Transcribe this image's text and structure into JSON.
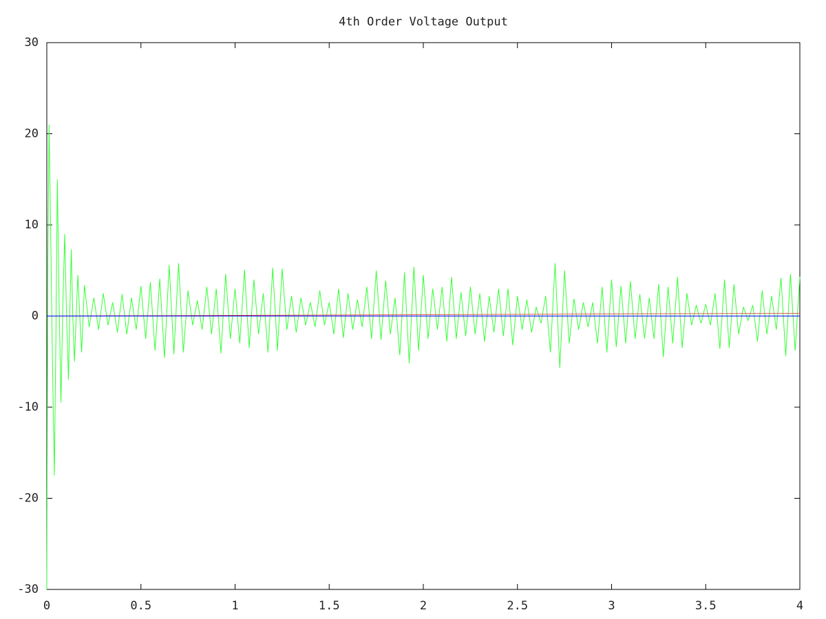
{
  "chart_data": {
    "type": "line",
    "title": "4th Order Voltage Output",
    "xlim": [
      0,
      4
    ],
    "xticks": [
      0,
      0.5,
      1,
      1.5,
      2,
      2.5,
      3,
      3.5,
      4
    ],
    "ylim": [
      -30,
      30
    ],
    "yticks": [
      -30,
      -20,
      -10,
      0,
      10,
      20,
      30
    ],
    "grid": false,
    "series": [
      {
        "color": "#33ff33",
        "x": [
          0,
          0.005,
          0.012,
          0.02,
          0.03,
          0.04,
          0.048,
          0.056,
          0.065,
          0.075,
          0.085,
          0.095,
          0.105,
          0.115,
          0.123,
          0.13,
          0.138,
          0.147,
          0.157,
          0.165,
          0.175,
          0.185,
          0.2,
          0.225,
          0.25,
          0.275,
          0.3,
          0.325,
          0.35,
          0.375,
          0.4,
          0.425,
          0.45,
          0.475,
          0.5,
          0.525,
          0.55,
          0.575,
          0.6,
          0.625,
          0.65,
          0.675,
          0.7,
          0.725,
          0.75,
          0.775,
          0.8,
          0.825,
          0.85,
          0.875,
          0.9,
          0.925,
          0.95,
          0.975,
          1.0,
          1.025,
          1.05,
          1.075,
          1.1,
          1.125,
          1.15,
          1.175,
          1.2,
          1.225,
          1.25,
          1.275,
          1.3,
          1.325,
          1.35,
          1.375,
          1.4,
          1.425,
          1.45,
          1.475,
          1.5,
          1.525,
          1.55,
          1.575,
          1.6,
          1.625,
          1.65,
          1.675,
          1.7,
          1.725,
          1.75,
          1.775,
          1.8,
          1.825,
          1.85,
          1.875,
          1.9,
          1.925,
          1.95,
          1.975,
          2.0,
          2.025,
          2.05,
          2.075,
          2.1,
          2.125,
          2.15,
          2.175,
          2.2,
          2.225,
          2.25,
          2.275,
          2.3,
          2.325,
          2.35,
          2.375,
          2.4,
          2.425,
          2.45,
          2.475,
          2.5,
          2.525,
          2.55,
          2.575,
          2.6,
          2.625,
          2.65,
          2.675,
          2.7,
          2.725,
          2.75,
          2.775,
          2.8,
          2.825,
          2.85,
          2.875,
          2.9,
          2.925,
          2.95,
          2.975,
          3.0,
          3.025,
          3.05,
          3.075,
          3.1,
          3.125,
          3.15,
          3.175,
          3.2,
          3.225,
          3.25,
          3.275,
          3.3,
          3.325,
          3.35,
          3.375,
          3.4,
          3.425,
          3.45,
          3.475,
          3.5,
          3.525,
          3.55,
          3.575,
          3.6,
          3.625,
          3.65,
          3.675,
          3.7,
          3.725,
          3.75,
          3.775,
          3.8,
          3.825,
          3.85,
          3.875,
          3.9,
          3.925,
          3.95,
          3.975,
          4.0
        ],
        "values": [
          -30,
          5,
          21,
          10,
          -5,
          -17.5,
          -3,
          15,
          2,
          -9.5,
          1,
          9,
          0,
          -7,
          1,
          7.3,
          0,
          -5,
          0.5,
          4.5,
          0,
          -4,
          3.4,
          -1.2,
          2.0,
          -1.5,
          2.5,
          -1,
          1.5,
          -1.8,
          2.4,
          -2,
          2,
          -1.5,
          3.3,
          -2.5,
          3.7,
          -3.8,
          4.1,
          -4.6,
          5.6,
          -4.2,
          5.8,
          -4,
          2.8,
          -1,
          1.7,
          -1.5,
          3.2,
          -2,
          3,
          -4.1,
          4.6,
          -2.5,
          3,
          -3,
          5.1,
          -3.5,
          4,
          -2,
          2.5,
          -4,
          5.3,
          -3.8,
          5.2,
          -1.5,
          2.2,
          -1.8,
          2,
          -1,
          1.5,
          -1.2,
          2.8,
          -1,
          1.5,
          -2,
          3,
          -2.4,
          2.5,
          -1.5,
          1.8,
          -1.2,
          3.2,
          -2.5,
          5,
          -2.6,
          3.9,
          -2,
          2,
          -4.3,
          4.8,
          -5.2,
          5.4,
          -3.8,
          4.5,
          -2.5,
          3,
          -1.5,
          3.2,
          -2.8,
          4.3,
          -2.5,
          2.6,
          -2.2,
          3.2,
          -2,
          2.5,
          -2.8,
          2.2,
          -1.8,
          3,
          -2.2,
          3,
          -3.2,
          2.2,
          -1.5,
          1.8,
          -1.8,
          1,
          -0.8,
          2.2,
          -4,
          5.8,
          -5.7,
          5,
          -3,
          1.9,
          -1.5,
          1.5,
          -1.2,
          1.5,
          -3,
          3.2,
          -4,
          4,
          -3.4,
          3.3,
          -3,
          3.8,
          -2.5,
          2.4,
          -2.5,
          2,
          -2.5,
          3.5,
          -4.5,
          3.2,
          -3,
          4.3,
          -3.5,
          2.5,
          -1,
          1.2,
          -0.8,
          1.3,
          -1,
          2.5,
          -3.6,
          4,
          -3.5,
          3.5,
          -2,
          1,
          -0.5,
          1.2,
          -2.8,
          2.8,
          -2,
          2.2,
          -1.5,
          4.2,
          -4.4,
          4.6,
          -3.8,
          4.3
        ]
      },
      {
        "color": "#e05050",
        "x": [
          0,
          4
        ],
        "values": [
          0,
          0.3
        ]
      },
      {
        "color": "#0000ff",
        "x": [
          0,
          4
        ],
        "values": [
          0,
          0
        ]
      }
    ]
  }
}
